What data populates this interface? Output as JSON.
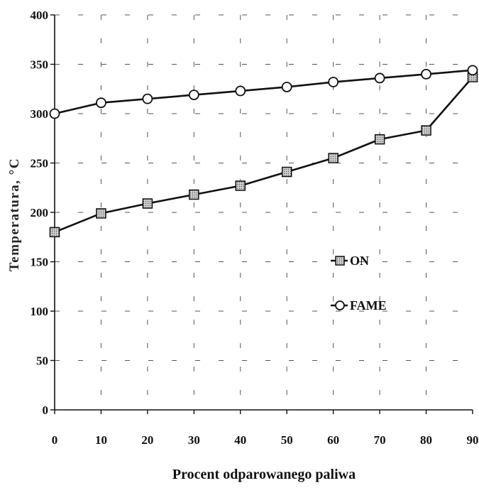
{
  "chart_data": {
    "type": "line",
    "xlabel": "Procent odparowanego paliwa",
    "ylabel": "Temperatura, °C",
    "x": [
      0,
      10,
      20,
      30,
      40,
      50,
      60,
      70,
      80,
      90
    ],
    "xticks": [
      "0",
      "10",
      "20",
      "30",
      "40",
      "50",
      "60",
      "70",
      "80",
      "90"
    ],
    "yticks": [
      "0",
      "50",
      "100",
      "150",
      "200",
      "250",
      "300",
      "350",
      "400"
    ],
    "xlim": [
      0,
      90
    ],
    "ylim": [
      0,
      400
    ],
    "grid": true,
    "legend_position": "center-right",
    "series": [
      {
        "name": "ON",
        "marker": "square-dotted",
        "values": [
          180,
          199,
          209,
          218,
          227,
          241,
          255,
          274,
          283,
          337
        ]
      },
      {
        "name": "FAME",
        "marker": "circle-open",
        "values": [
          300,
          311,
          315,
          319,
          323,
          327,
          332,
          336,
          340,
          344
        ]
      }
    ],
    "colors": {
      "line": "#111111",
      "grid": "#555555",
      "square_fill": "#b8b8b8",
      "circle_fill": "#ffffff"
    }
  }
}
